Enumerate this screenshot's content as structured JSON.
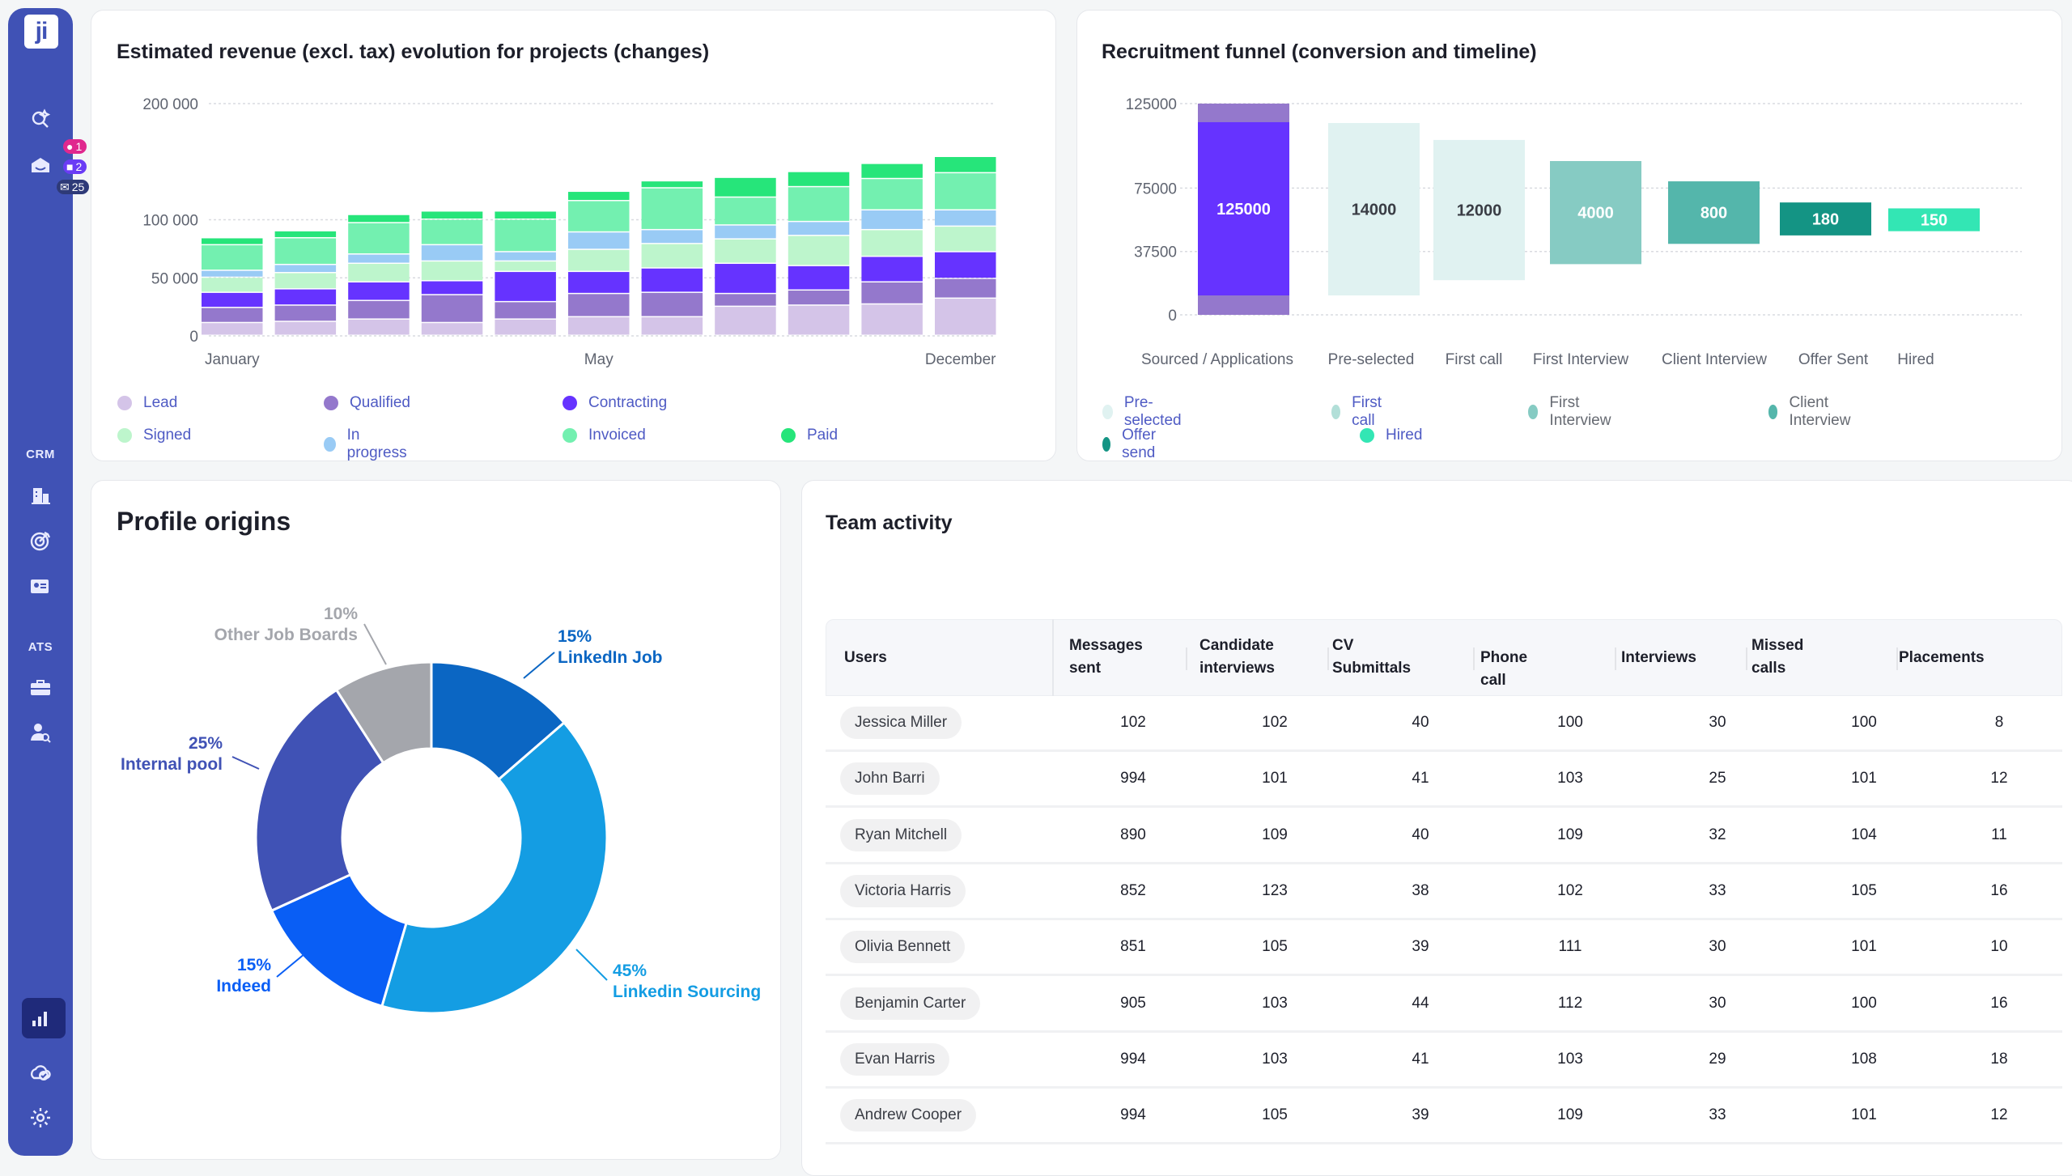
{
  "sidebar": {
    "logo": "ji",
    "badges": {
      "notifications": "1",
      "tasks": "2",
      "messages": "25"
    },
    "badge_colors": {
      "notifications": "#e0288e",
      "tasks": "#6a3cf5",
      "messages": "#2e3a78"
    },
    "section_crm": "CRM",
    "section_ats": "ATS",
    "icons": [
      "search-sparkle-icon",
      "inbox-icon",
      "building-icon",
      "target-icon",
      "contact-card-icon",
      "briefcase-icon",
      "user-search-icon",
      "bar-chart-icon",
      "cloud-check-icon",
      "gear-icon"
    ],
    "active": "bar-chart-icon"
  },
  "revenue": {
    "title": "Estimated revenue (excl. tax) evolution for projects (changes)"
  },
  "funnel": {
    "title": "Recruitment funnel (conversion and timeline)"
  },
  "origins": {
    "title": "Profile origins"
  },
  "team": {
    "title": "Team activity",
    "columns": [
      "Users",
      "Messages sent",
      "Candidate interviews",
      "CV Submittals",
      "Phone call",
      "Interviews",
      "Missed calls",
      " Placements"
    ],
    "column_lines": [
      [
        "Users"
      ],
      [
        "Messages",
        "sent"
      ],
      [
        "Candidate",
        "interviews"
      ],
      [
        "CV",
        "Submittals"
      ],
      [
        "Phone call"
      ],
      [
        "Interviews"
      ],
      [
        "Missed",
        "calls"
      ],
      [
        "Placements"
      ]
    ],
    "rows": [
      {
        "user": "Jessica Miller",
        "values": [
          "102",
          "102",
          "40",
          "100",
          "30",
          "100",
          "8"
        ]
      },
      {
        "user": "John Barri",
        "values": [
          "994",
          "101",
          "41",
          "103",
          "25",
          "101",
          "12"
        ]
      },
      {
        "user": "Ryan Mitchell",
        "values": [
          "890",
          "109",
          "40",
          "109",
          "32",
          "104",
          "11"
        ]
      },
      {
        "user": "Victoria Harris",
        "values": [
          "852",
          "123",
          "38",
          "102",
          "33",
          "105",
          "16"
        ]
      },
      {
        "user": "Olivia Bennett",
        "values": [
          "851",
          "105",
          "39",
          "111",
          "30",
          "101",
          "10"
        ]
      },
      {
        "user": "Benjamin Carter",
        "values": [
          "905",
          "103",
          "44",
          "112",
          "30",
          "100",
          "16"
        ]
      },
      {
        "user": "Evan Harris",
        "values": [
          "994",
          "103",
          "41",
          "103",
          "29",
          "108",
          "18"
        ]
      },
      {
        "user": "Andrew Cooper",
        "values": [
          "994",
          "105",
          "39",
          "109",
          "33",
          "101",
          "12"
        ]
      }
    ]
  },
  "chart_data": [
    {
      "type": "bar",
      "stacked": true,
      "title": "Estimated revenue (excl. tax) evolution for projects (changes)",
      "x_tick_labels": [
        {
          "label": "January",
          "bar": 0
        },
        {
          "label": "May",
          "bar": 5
        },
        {
          "label": "December",
          "bar": 10
        }
      ],
      "y_ticks": [
        {
          "value": 0,
          "label": "0"
        },
        {
          "value": 50000,
          "label": "50 000"
        },
        {
          "value": 100000,
          "label": "100 000"
        },
        {
          "value": 200000,
          "label": "200 000"
        }
      ],
      "ylim": [
        0,
        200000
      ],
      "grid": true,
      "legend": "bottom",
      "series": [
        {
          "name": "Lead",
          "color": "#d4c4e8",
          "values": [
            11000,
            12000,
            14000,
            11000,
            14000,
            16000,
            16000,
            25000,
            26000,
            27000,
            32000
          ]
        },
        {
          "name": "Qualified",
          "color": "#9478cc",
          "values": [
            13000,
            14000,
            16000,
            24000,
            15000,
            20000,
            21000,
            11000,
            13000,
            19000,
            17000
          ]
        },
        {
          "name": "Contracting",
          "color": "#6633ff",
          "values": [
            13000,
            14000,
            16000,
            12000,
            26000,
            19000,
            21000,
            26000,
            21000,
            22000,
            23000
          ]
        },
        {
          "name": "Signed",
          "color": "#bdf5cc",
          "values": [
            13000,
            14000,
            16000,
            17000,
            9000,
            19000,
            21000,
            21000,
            26000,
            23000,
            22000
          ]
        },
        {
          "name": "In progress",
          "color": "#99cbf5",
          "values": [
            6000,
            7000,
            8000,
            14000,
            8000,
            15000,
            12000,
            12000,
            12000,
            17000,
            14000
          ]
        },
        {
          "name": "Invoiced",
          "color": "#73f0b0",
          "values": [
            22000,
            23000,
            27000,
            22000,
            28000,
            27000,
            36000,
            24000,
            30000,
            27000,
            32000
          ]
        },
        {
          "name": "Paid",
          "color": "#26e57a",
          "values": [
            6000,
            6000,
            7000,
            7000,
            7000,
            8000,
            6000,
            17000,
            13000,
            13000,
            14000
          ]
        }
      ]
    },
    {
      "type": "bar",
      "subtype": "floating-funnel",
      "title": "Recruitment funnel (conversion and timeline)",
      "y_ticks": [
        {
          "value": 0,
          "label": "0"
        },
        {
          "value": 37500,
          "label": "37500"
        },
        {
          "value": 75000,
          "label": "75000"
        },
        {
          "value": 125000,
          "label": "125000"
        }
      ],
      "ylim": [
        0,
        125000
      ],
      "grid": true,
      "legend": "bottom",
      "stages": [
        {
          "category": "Sourced / Applications",
          "label": "125000",
          "range": [
            0,
            125000
          ],
          "core_range": [
            11500,
            114000
          ],
          "color": "#6633ff",
          "cap_color": "#9478cc",
          "text_color": "#ffffff"
        },
        {
          "category": "Pre-selected",
          "label": "14000",
          "range": [
            11500,
            113500
          ],
          "color": "#e0f2f1",
          "text_color": "#3a3d45"
        },
        {
          "category": "First call",
          "label": "12000",
          "range": [
            20500,
            103500
          ],
          "color": "#e0f2f1",
          "text_color": "#3a3d45"
        },
        {
          "category": "First Interview",
          "label": "4000",
          "range": [
            30000,
            91000
          ],
          "color": "#86cbc3",
          "text_color": "#ffffff"
        },
        {
          "category": "Client Interview",
          "label": "800",
          "range": [
            42000,
            79000
          ],
          "color": "#54b6ab",
          "text_color": "#ffffff"
        },
        {
          "category": "Offer Sent",
          "label": "180",
          "range": [
            47000,
            66500
          ],
          "color": "#149484",
          "text_color": "#ffffff"
        },
        {
          "category": "Hired",
          "label": "150",
          "range": [
            49500,
            63000
          ],
          "color": "#33e6b4",
          "text_color": "#ffffff"
        }
      ],
      "legend_items": [
        {
          "name": "Pre-selected",
          "color": "#e0f2f1",
          "text_color": "#4f5bc4"
        },
        {
          "name": "First call",
          "color": "#b2dfd8",
          "text_color": "#4f5bc4"
        },
        {
          "name": "First Interview",
          "color": "#86cbc3",
          "text_color": "#666a72"
        },
        {
          "name": "Client Interview",
          "color": "#54b6ab",
          "text_color": "#666a72"
        },
        {
          "name": "Offer send",
          "color": "#149484",
          "text_color": "#4f5bc4"
        },
        {
          "name": "Hired",
          "color": "#33e6b4",
          "text_color": "#4f5bc4"
        }
      ]
    },
    {
      "type": "pie",
      "donut": true,
      "title": "Profile origins",
      "slices": [
        {
          "name": "LinkedIn Job",
          "value": 15,
          "label": "15%",
          "color": "#0b66c3"
        },
        {
          "name": "Linkedin Sourcing",
          "value": 45,
          "label": "45%",
          "color": "#149de3"
        },
        {
          "name": "Indeed",
          "value": 15,
          "label": "15%",
          "color": "#095ef5"
        },
        {
          "name": "Internal pool",
          "value": 25,
          "label": "25%",
          "color": "#4052b5"
        },
        {
          "name": "Other Job Boards",
          "value": 10,
          "label": "10%",
          "color": "#a4a6ac"
        }
      ]
    }
  ]
}
